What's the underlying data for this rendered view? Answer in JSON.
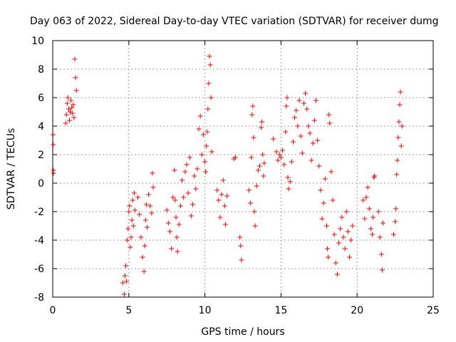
{
  "chart_data": {
    "type": "scatter",
    "title": "Day 063 of 2022, Sidereal Day-to-day VTEC variation (SDTVAR) for receiver dumg",
    "xlabel": "GPS time / hours",
    "ylabel": "SDTVAR / TECUs",
    "xlim": [
      0,
      25
    ],
    "ylim": [
      -8,
      10
    ],
    "xticks": [
      0,
      5,
      10,
      15,
      20,
      25
    ],
    "yticks": [
      -8,
      -6,
      -4,
      -2,
      0,
      2,
      4,
      6,
      8,
      10
    ],
    "grid": true,
    "marker": "+",
    "color": "#ff0000",
    "series": [
      {
        "name": "SDTVAR",
        "points": [
          [
            0.02,
            3.4
          ],
          [
            0.03,
            2.7
          ],
          [
            0.04,
            0.9
          ],
          [
            0.05,
            0.7
          ],
          [
            0.85,
            4.2
          ],
          [
            0.9,
            4.8
          ],
          [
            0.95,
            5.6
          ],
          [
            1.0,
            6.0
          ],
          [
            1.05,
            5.2
          ],
          [
            1.1,
            4.4
          ],
          [
            1.15,
            5.0
          ],
          [
            1.2,
            5.8
          ],
          [
            1.25,
            5.3
          ],
          [
            1.3,
            4.9
          ],
          [
            1.35,
            5.5
          ],
          [
            1.4,
            4.6
          ],
          [
            1.45,
            8.7
          ],
          [
            1.5,
            7.4
          ],
          [
            1.55,
            6.5
          ],
          [
            4.6,
            -7.0
          ],
          [
            4.7,
            -7.8
          ],
          [
            4.75,
            -6.5
          ],
          [
            4.8,
            -5.8
          ],
          [
            4.85,
            -6.9
          ],
          [
            4.9,
            -4.0
          ],
          [
            4.95,
            -3.2
          ],
          [
            5.0,
            -2.0
          ],
          [
            5.05,
            -1.6
          ],
          [
            5.1,
            -4.5
          ],
          [
            5.15,
            -3.8
          ],
          [
            5.2,
            -2.6
          ],
          [
            5.25,
            -1.2
          ],
          [
            5.3,
            -3.0
          ],
          [
            5.35,
            -0.7
          ],
          [
            5.4,
            -1.9
          ],
          [
            5.6,
            -1.0
          ],
          [
            5.7,
            -2.2
          ],
          [
            5.8,
            -3.8
          ],
          [
            5.9,
            -5.2
          ],
          [
            6.0,
            -6.2
          ],
          [
            6.05,
            -4.4
          ],
          [
            6.1,
            -2.6
          ],
          [
            6.15,
            -1.5
          ],
          [
            6.2,
            -3.1
          ],
          [
            6.3,
            -0.8
          ],
          [
            6.4,
            -1.6
          ],
          [
            6.5,
            -2.1
          ],
          [
            6.55,
            0.7
          ],
          [
            6.6,
            -0.3
          ],
          [
            7.5,
            -1.9
          ],
          [
            7.6,
            -2.8
          ],
          [
            7.7,
            -3.4
          ],
          [
            7.8,
            -4.6
          ],
          [
            7.9,
            -1.0
          ],
          [
            8.0,
            0.9
          ],
          [
            8.05,
            -1.2
          ],
          [
            8.1,
            -2.4
          ],
          [
            8.15,
            -3.8
          ],
          [
            8.2,
            -4.8
          ],
          [
            8.3,
            -2.9
          ],
          [
            8.4,
            -1.6
          ],
          [
            8.5,
            0.2
          ],
          [
            8.6,
            -1.0
          ],
          [
            8.7,
            0.8
          ],
          [
            8.8,
            1.3
          ],
          [
            8.9,
            -0.7
          ],
          [
            9.0,
            1.8
          ],
          [
            9.1,
            -2.3
          ],
          [
            9.2,
            -1.5
          ],
          [
            9.3,
            0.5
          ],
          [
            9.4,
            -0.4
          ],
          [
            9.5,
            1.0
          ],
          [
            9.6,
            3.8
          ],
          [
            9.7,
            4.7
          ],
          [
            9.8,
            2.0
          ],
          [
            9.9,
            3.4
          ],
          [
            10.0,
            1.5
          ],
          [
            10.05,
            0.8
          ],
          [
            10.1,
            2.6
          ],
          [
            10.15,
            3.6
          ],
          [
            10.2,
            5.2
          ],
          [
            10.25,
            7.0
          ],
          [
            10.3,
            8.9
          ],
          [
            10.35,
            8.3
          ],
          [
            10.4,
            6.0
          ],
          [
            10.45,
            2.2
          ],
          [
            10.8,
            -0.5
          ],
          [
            10.9,
            -1.2
          ],
          [
            11.0,
            -2.4
          ],
          [
            11.1,
            -0.8
          ],
          [
            11.2,
            0.2
          ],
          [
            11.3,
            -1.6
          ],
          [
            11.35,
            -2.9
          ],
          [
            11.45,
            -0.9
          ],
          [
            11.9,
            1.7
          ],
          [
            12.0,
            1.8
          ],
          [
            12.3,
            -3.8
          ],
          [
            12.35,
            -4.4
          ],
          [
            12.4,
            -5.4
          ],
          [
            12.9,
            -0.5
          ],
          [
            13.0,
            -1.4
          ],
          [
            13.05,
            1.8
          ],
          [
            13.1,
            4.8
          ],
          [
            13.15,
            5.4
          ],
          [
            13.2,
            3.2
          ],
          [
            13.25,
            -2.0
          ],
          [
            13.3,
            -3.0
          ],
          [
            13.4,
            -0.2
          ],
          [
            13.5,
            0.9
          ],
          [
            13.6,
            1.2
          ],
          [
            13.7,
            3.9
          ],
          [
            13.75,
            4.3
          ],
          [
            13.8,
            2.0
          ],
          [
            13.85,
            0.5
          ],
          [
            13.9,
            1.4
          ],
          [
            14.5,
            3.1
          ],
          [
            14.7,
            2.2
          ],
          [
            14.8,
            1.6
          ],
          [
            14.9,
            2.0
          ],
          [
            15.0,
            1.8
          ],
          [
            15.1,
            2.3
          ],
          [
            15.2,
            1.3
          ],
          [
            15.3,
            3.6
          ],
          [
            15.35,
            5.4
          ],
          [
            15.4,
            6.0
          ],
          [
            15.45,
            0.4
          ],
          [
            15.5,
            -0.4
          ],
          [
            15.6,
            0.1
          ],
          [
            15.7,
            1.5
          ],
          [
            15.8,
            2.9
          ],
          [
            15.9,
            4.6
          ],
          [
            16.0,
            5.1
          ],
          [
            16.1,
            4.0
          ],
          [
            16.2,
            5.8
          ],
          [
            16.3,
            3.3
          ],
          [
            16.4,
            2.1
          ],
          [
            16.5,
            5.6
          ],
          [
            16.6,
            6.3
          ],
          [
            16.7,
            5.2
          ],
          [
            16.8,
            4.0
          ],
          [
            16.9,
            3.5
          ],
          [
            17.0,
            1.6
          ],
          [
            17.1,
            2.8
          ],
          [
            17.2,
            4.4
          ],
          [
            17.3,
            5.8
          ],
          [
            17.4,
            3.0
          ],
          [
            17.5,
            1.2
          ],
          [
            17.6,
            -0.5
          ],
          [
            17.7,
            -2.5
          ],
          [
            17.8,
            -1.4
          ],
          [
            17.9,
            0.3
          ],
          [
            18.0,
            -3.0
          ],
          [
            18.05,
            -4.6
          ],
          [
            18.1,
            -5.2
          ],
          [
            18.15,
            4.8
          ],
          [
            18.2,
            4.2
          ],
          [
            18.3,
            0.8
          ],
          [
            18.4,
            -1.2
          ],
          [
            18.5,
            -3.6
          ],
          [
            18.6,
            -5.6
          ],
          [
            18.7,
            -6.4
          ],
          [
            18.8,
            -4.2
          ],
          [
            18.9,
            -3.2
          ],
          [
            19.0,
            -2.4
          ],
          [
            19.1,
            -3.8
          ],
          [
            19.2,
            -4.6
          ],
          [
            19.3,
            -2.0
          ],
          [
            19.4,
            -3.4
          ],
          [
            19.5,
            -5.2
          ],
          [
            19.6,
            -4.0
          ],
          [
            19.7,
            -3.0
          ],
          [
            20.4,
            -1.2
          ],
          [
            20.5,
            -2.5
          ],
          [
            20.6,
            -1.0
          ],
          [
            20.7,
            -0.3
          ],
          [
            20.8,
            -1.8
          ],
          [
            20.9,
            -3.2
          ],
          [
            21.0,
            -3.6
          ],
          [
            21.05,
            -2.4
          ],
          [
            21.1,
            0.4
          ],
          [
            21.15,
            0.5
          ],
          [
            21.4,
            -2.0
          ],
          [
            21.5,
            -3.8
          ],
          [
            21.6,
            -5.0
          ],
          [
            21.65,
            -6.1
          ],
          [
            21.7,
            -2.8
          ],
          [
            22.4,
            -3.6
          ],
          [
            22.5,
            -2.7
          ],
          [
            22.55,
            -1.8
          ],
          [
            22.6,
            0.6
          ],
          [
            22.65,
            1.6
          ],
          [
            22.7,
            3.2
          ],
          [
            22.75,
            4.3
          ],
          [
            22.8,
            5.5
          ],
          [
            22.85,
            6.4
          ],
          [
            22.9,
            2.6
          ],
          [
            22.95,
            4.0
          ]
        ]
      }
    ]
  }
}
